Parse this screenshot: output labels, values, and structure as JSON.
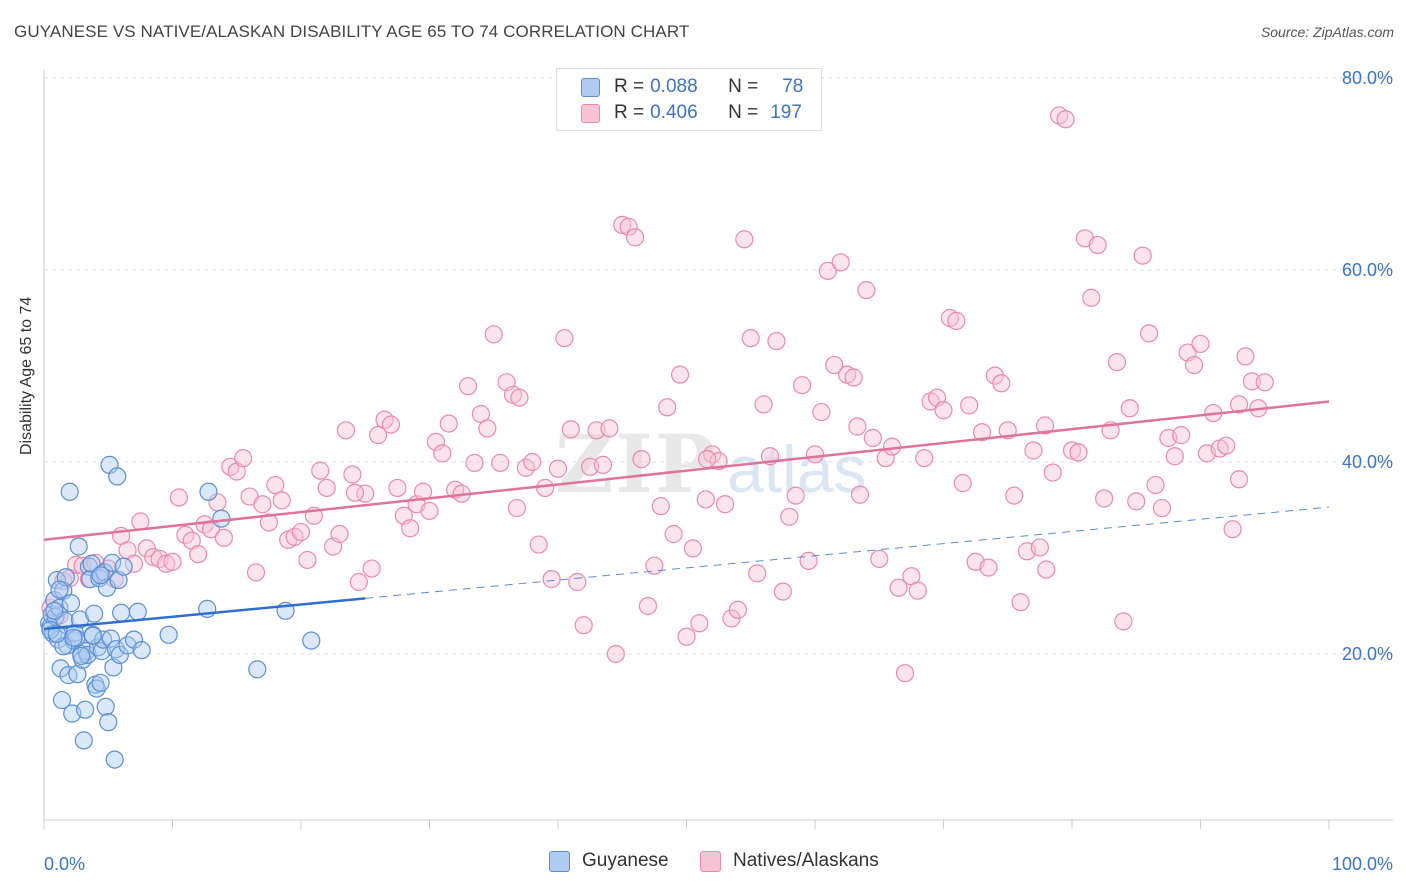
{
  "title": "GUYANESE VS NATIVE/ALASKAN DISABILITY AGE 65 TO 74 CORRELATION CHART",
  "source": "Source: ZipAtlas.com",
  "watermark": "ZIPatlas",
  "colors": {
    "guyanese_fill": "#aecbf2",
    "guyanese_stroke": "#5b8fd6",
    "guyanese_line": "#2f6fcf",
    "natives_fill": "#f8c3d4",
    "natives_stroke": "#e98aab",
    "natives_line": "#e0739a",
    "tick_label": "#3a73c8",
    "grid": "#dddddd"
  },
  "legend_top": {
    "rows": [
      {
        "r_label": "R =",
        "r_value": "0.088",
        "n_label": "N =",
        "n_value": "78"
      },
      {
        "r_label": "R =",
        "r_value": "0.406",
        "n_label": "N =",
        "n_value": "197"
      }
    ]
  },
  "legend_bottom": [
    "Guyanese",
    "Natives/Alaskans"
  ],
  "chart_data": {
    "type": "scatter",
    "title": "GUYANESE VS NATIVE/ALASKAN DISABILITY AGE 65 TO 74 CORRELATION CHART",
    "xlabel": "",
    "ylabel": "Disability Age 65 to 74",
    "xlim": [
      0,
      100
    ],
    "ylim": [
      2,
      82
    ],
    "x_tick_labels": [
      "0.0%",
      "100.0%"
    ],
    "y_ticks": [
      20,
      40,
      60,
      80
    ],
    "y_tick_labels": [
      "20.0%",
      "40.0%",
      "60.0%",
      "80.0%"
    ],
    "grid": "horizontal dashed",
    "legend_position": "top-center",
    "series": [
      {
        "name": "Guyanese",
        "r": 0.088,
        "n": 78,
        "trend": {
          "x": [
            0,
            25
          ],
          "y": [
            22.6,
            25.8
          ],
          "dashed_to": [
            100,
            35.3
          ]
        },
        "points": [
          [
            0.4,
            23.2
          ],
          [
            0.5,
            22.8
          ],
          [
            0.6,
            24.1
          ],
          [
            0.7,
            22.1
          ],
          [
            0.8,
            25.6
          ],
          [
            0.9,
            23.9
          ],
          [
            1.0,
            27.7
          ],
          [
            1.1,
            21.5
          ],
          [
            1.2,
            24.8
          ],
          [
            1.3,
            18.5
          ],
          [
            1.4,
            15.2
          ],
          [
            1.5,
            26.6
          ],
          [
            1.6,
            23.5
          ],
          [
            1.7,
            28.0
          ],
          [
            1.8,
            20.9
          ],
          [
            1.9,
            17.8
          ],
          [
            2.0,
            36.9
          ],
          [
            2.1,
            25.3
          ],
          [
            2.2,
            13.8
          ],
          [
            2.3,
            21.4
          ],
          [
            2.4,
            22.2
          ],
          [
            2.5,
            21.6
          ],
          [
            2.6,
            17.9
          ],
          [
            2.7,
            31.2
          ],
          [
            2.8,
            23.6
          ],
          [
            2.9,
            20.0
          ],
          [
            3.0,
            19.4
          ],
          [
            3.1,
            11.0
          ],
          [
            3.2,
            14.2
          ],
          [
            3.3,
            20.3
          ],
          [
            3.4,
            19.9
          ],
          [
            3.5,
            29.1
          ],
          [
            3.6,
            27.8
          ],
          [
            3.7,
            29.4
          ],
          [
            3.8,
            22.0
          ],
          [
            3.9,
            24.2
          ],
          [
            4.0,
            16.8
          ],
          [
            4.1,
            16.4
          ],
          [
            4.2,
            20.7
          ],
          [
            4.3,
            27.9
          ],
          [
            4.4,
            17.0
          ],
          [
            4.5,
            20.3
          ],
          [
            4.6,
            21.5
          ],
          [
            4.7,
            28.5
          ],
          [
            4.8,
            14.5
          ],
          [
            4.9,
            26.9
          ],
          [
            5.0,
            12.9
          ],
          [
            5.1,
            39.7
          ],
          [
            5.2,
            21.6
          ],
          [
            5.3,
            29.5
          ],
          [
            5.4,
            18.6
          ],
          [
            5.5,
            9.0
          ],
          [
            5.6,
            20.5
          ],
          [
            5.7,
            38.5
          ],
          [
            5.8,
            27.7
          ],
          [
            5.9,
            19.9
          ],
          [
            6.0,
            24.3
          ],
          [
            6.2,
            29.1
          ],
          [
            6.5,
            20.9
          ],
          [
            7.0,
            21.5
          ],
          [
            7.3,
            24.4
          ],
          [
            7.6,
            20.4
          ],
          [
            9.7,
            22.0
          ],
          [
            12.7,
            24.7
          ],
          [
            12.8,
            36.9
          ],
          [
            13.8,
            34.1
          ],
          [
            16.6,
            18.4
          ],
          [
            18.8,
            24.5
          ],
          [
            20.8,
            21.4
          ],
          [
            0.8,
            24.5
          ],
          [
            1.2,
            26.7
          ],
          [
            1.5,
            20.8
          ],
          [
            2.3,
            21.7
          ],
          [
            2.9,
            19.8
          ],
          [
            3.8,
            21.9
          ],
          [
            4.4,
            28.2
          ],
          [
            0.5,
            22.5
          ],
          [
            1.0,
            22.1
          ]
        ]
      },
      {
        "name": "Natives/Alaskans",
        "r": 0.406,
        "n": 197,
        "trend": {
          "x": [
            0,
            100
          ],
          "y": [
            31.9,
            46.3
          ]
        },
        "points": [
          [
            0.5,
            24.8
          ],
          [
            0.8,
            25.6
          ],
          [
            1.2,
            24.0
          ],
          [
            1.5,
            27.6
          ],
          [
            2.0,
            27.9
          ],
          [
            2.5,
            29.3
          ],
          [
            3.0,
            29.2
          ],
          [
            3.5,
            27.8
          ],
          [
            4.0,
            29.5
          ],
          [
            4.5,
            28.3
          ],
          [
            5.0,
            28.9
          ],
          [
            5.5,
            27.8
          ],
          [
            6.0,
            32.3
          ],
          [
            6.5,
            30.8
          ],
          [
            7.0,
            29.4
          ],
          [
            7.5,
            33.8
          ],
          [
            8.0,
            31.0
          ],
          [
            8.5,
            30.1
          ],
          [
            9.0,
            29.9
          ],
          [
            9.5,
            29.4
          ],
          [
            10.0,
            29.6
          ],
          [
            10.5,
            36.3
          ],
          [
            11.0,
            32.4
          ],
          [
            11.5,
            31.8
          ],
          [
            12.0,
            30.4
          ],
          [
            12.5,
            33.5
          ],
          [
            13.0,
            33.0
          ],
          [
            13.5,
            35.8
          ],
          [
            14.0,
            32.1
          ],
          [
            14.5,
            39.5
          ],
          [
            15.0,
            39.0
          ],
          [
            15.5,
            40.4
          ],
          [
            16.0,
            36.4
          ],
          [
            16.5,
            28.5
          ],
          [
            17.0,
            35.6
          ],
          [
            17.5,
            33.7
          ],
          [
            18.0,
            37.6
          ],
          [
            18.5,
            36.0
          ],
          [
            19.0,
            31.9
          ],
          [
            19.5,
            32.2
          ],
          [
            20.0,
            32.7
          ],
          [
            20.5,
            29.8
          ],
          [
            21.0,
            34.4
          ],
          [
            21.5,
            39.1
          ],
          [
            22.0,
            37.3
          ],
          [
            22.5,
            31.2
          ],
          [
            23.0,
            32.5
          ],
          [
            23.5,
            43.3
          ],
          [
            24.0,
            38.7
          ],
          [
            24.5,
            27.5
          ],
          [
            25.0,
            36.7
          ],
          [
            25.5,
            28.9
          ],
          [
            26.0,
            42.8
          ],
          [
            26.5,
            44.4
          ],
          [
            27.0,
            43.9
          ],
          [
            27.5,
            37.3
          ],
          [
            28.0,
            34.4
          ],
          [
            28.5,
            33.1
          ],
          [
            29.0,
            35.6
          ],
          [
            29.5,
            36.9
          ],
          [
            30.0,
            34.9
          ],
          [
            30.5,
            42.1
          ],
          [
            31.0,
            40.9
          ],
          [
            31.5,
            44.0
          ],
          [
            32.0,
            37.1
          ],
          [
            32.5,
            36.7
          ],
          [
            33.0,
            47.9
          ],
          [
            33.5,
            39.9
          ],
          [
            34.0,
            45.0
          ],
          [
            34.5,
            43.5
          ],
          [
            35.0,
            53.3
          ],
          [
            35.5,
            39.9
          ],
          [
            36.0,
            48.3
          ],
          [
            36.5,
            47.0
          ],
          [
            37.0,
            46.7
          ],
          [
            37.5,
            39.4
          ],
          [
            38.0,
            40.0
          ],
          [
            38.5,
            31.4
          ],
          [
            39.0,
            37.3
          ],
          [
            39.5,
            27.8
          ],
          [
            40.0,
            39.3
          ],
          [
            40.5,
            52.9
          ],
          [
            41.0,
            43.4
          ],
          [
            41.5,
            27.5
          ],
          [
            42.0,
            23.0
          ],
          [
            42.5,
            39.5
          ],
          [
            43.0,
            43.3
          ],
          [
            43.5,
            39.7
          ],
          [
            44.0,
            43.5
          ],
          [
            44.5,
            20.0
          ],
          [
            45.0,
            64.7
          ],
          [
            45.5,
            64.5
          ],
          [
            46.0,
            63.4
          ],
          [
            46.5,
            40.3
          ],
          [
            47.0,
            25.0
          ],
          [
            47.5,
            29.2
          ],
          [
            48.0,
            35.4
          ],
          [
            48.5,
            45.7
          ],
          [
            49.0,
            32.5
          ],
          [
            49.5,
            49.1
          ],
          [
            50.0,
            21.8
          ],
          [
            50.5,
            31.0
          ],
          [
            51.0,
            23.2
          ],
          [
            51.5,
            36.1
          ],
          [
            52.0,
            40.8
          ],
          [
            52.5,
            40.1
          ],
          [
            53.0,
            35.6
          ],
          [
            53.5,
            23.7
          ],
          [
            54.0,
            24.6
          ],
          [
            54.5,
            63.2
          ],
          [
            55.0,
            52.9
          ],
          [
            55.5,
            28.4
          ],
          [
            56.0,
            46.0
          ],
          [
            56.5,
            40.6
          ],
          [
            57.0,
            52.6
          ],
          [
            57.5,
            26.5
          ],
          [
            58.0,
            34.3
          ],
          [
            58.5,
            36.5
          ],
          [
            59.0,
            48.0
          ],
          [
            59.5,
            29.7
          ],
          [
            60.0,
            40.8
          ],
          [
            60.5,
            45.2
          ],
          [
            61.0,
            59.9
          ],
          [
            61.5,
            50.1
          ],
          [
            62.0,
            60.8
          ],
          [
            62.5,
            49.1
          ],
          [
            63.0,
            48.8
          ],
          [
            63.5,
            36.6
          ],
          [
            64.0,
            57.9
          ],
          [
            64.5,
            42.5
          ],
          [
            65.0,
            29.9
          ],
          [
            65.5,
            40.4
          ],
          [
            66.0,
            41.6
          ],
          [
            66.5,
            26.9
          ],
          [
            67.0,
            18.0
          ],
          [
            67.5,
            28.1
          ],
          [
            68.0,
            26.6
          ],
          [
            68.5,
            40.4
          ],
          [
            69.0,
            46.3
          ],
          [
            69.5,
            46.7
          ],
          [
            70.0,
            45.4
          ],
          [
            70.5,
            55.0
          ],
          [
            71.0,
            54.7
          ],
          [
            71.5,
            37.8
          ],
          [
            72.0,
            45.9
          ],
          [
            72.5,
            29.6
          ],
          [
            73.0,
            43.1
          ],
          [
            73.5,
            29.0
          ],
          [
            74.0,
            49.0
          ],
          [
            74.5,
            48.2
          ],
          [
            75.0,
            43.3
          ],
          [
            75.5,
            36.5
          ],
          [
            76.0,
            25.4
          ],
          [
            76.5,
            30.7
          ],
          [
            77.0,
            41.2
          ],
          [
            77.5,
            31.1
          ],
          [
            78.0,
            28.8
          ],
          [
            78.5,
            38.9
          ],
          [
            79.0,
            76.1
          ],
          [
            79.5,
            75.7
          ],
          [
            80.0,
            41.2
          ],
          [
            80.5,
            41.0
          ],
          [
            81.0,
            63.3
          ],
          [
            81.5,
            57.1
          ],
          [
            82.0,
            62.6
          ],
          [
            82.5,
            36.2
          ],
          [
            83.0,
            43.3
          ],
          [
            83.5,
            50.4
          ],
          [
            84.0,
            23.4
          ],
          [
            84.5,
            45.6
          ],
          [
            85.0,
            35.9
          ],
          [
            85.5,
            61.5
          ],
          [
            86.0,
            53.4
          ],
          [
            86.5,
            37.6
          ],
          [
            87.0,
            35.2
          ],
          [
            87.5,
            42.5
          ],
          [
            88.0,
            40.6
          ],
          [
            88.5,
            42.8
          ],
          [
            89.0,
            51.4
          ],
          [
            89.5,
            50.1
          ],
          [
            90.0,
            52.3
          ],
          [
            90.5,
            40.9
          ],
          [
            91.0,
            45.1
          ],
          [
            91.5,
            41.4
          ],
          [
            92.0,
            41.7
          ],
          [
            92.5,
            33.0
          ],
          [
            93.0,
            38.2
          ],
          [
            93.5,
            51.0
          ],
          [
            94.0,
            48.4
          ],
          [
            94.5,
            45.6
          ],
          [
            95.0,
            48.3
          ],
          [
            24.2,
            36.8
          ],
          [
            36.8,
            35.2
          ],
          [
            51.6,
            40.3
          ],
          [
            63.3,
            43.7
          ],
          [
            77.9,
            43.8
          ],
          [
            93.0,
            46.0
          ]
        ]
      }
    ]
  }
}
